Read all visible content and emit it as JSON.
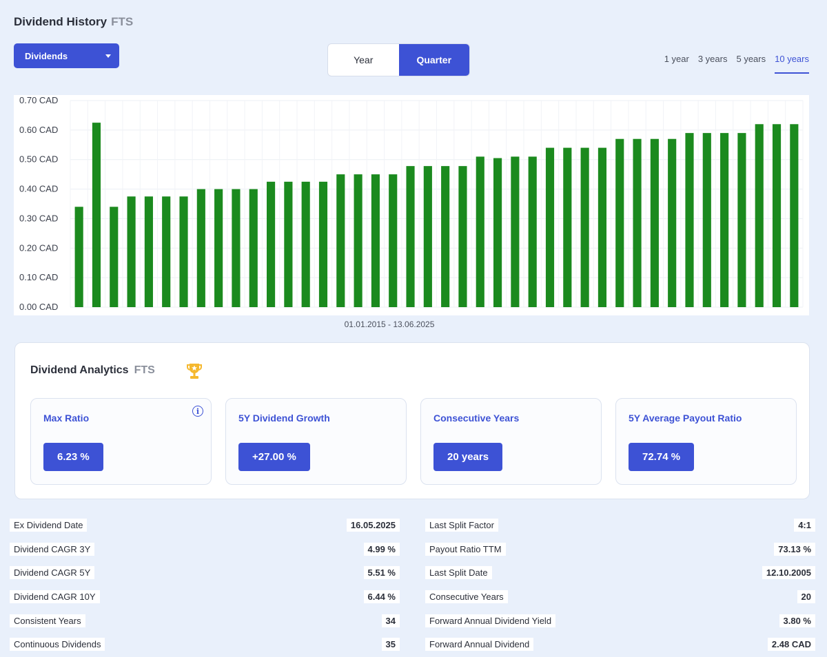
{
  "header": {
    "title": "Dividend History",
    "ticker": "FTS"
  },
  "dropdown": {
    "selected": "Dividends"
  },
  "toggle": {
    "options": [
      "Year",
      "Quarter"
    ],
    "active": "Quarter"
  },
  "ranges": {
    "options": [
      "1 year",
      "3 years",
      "5 years",
      "10 years"
    ],
    "active": "10 years"
  },
  "chart_data": {
    "type": "bar",
    "ylim": [
      0,
      0.7
    ],
    "ytick_labels": [
      "0.00 CAD",
      "0.10 CAD",
      "0.20 CAD",
      "0.30 CAD",
      "0.40 CAD",
      "0.50 CAD",
      "0.60 CAD",
      "0.70 CAD"
    ],
    "yticks": [
      0,
      0.1,
      0.2,
      0.3,
      0.4,
      0.5,
      0.6,
      0.7
    ],
    "values": [
      0.34,
      0.625,
      0.34,
      0.375,
      0.375,
      0.375,
      0.375,
      0.4,
      0.4,
      0.4,
      0.4,
      0.425,
      0.425,
      0.425,
      0.425,
      0.45,
      0.45,
      0.45,
      0.45,
      0.478,
      0.478,
      0.478,
      0.478,
      0.51,
      0.505,
      0.51,
      0.51,
      0.54,
      0.54,
      0.54,
      0.54,
      0.57,
      0.57,
      0.57,
      0.57,
      0.59,
      0.59,
      0.59,
      0.59,
      0.62,
      0.62,
      0.62
    ],
    "color": "#1b8a1e",
    "grid": true,
    "xlabel": "01.01.2015 - 13.06.2025"
  },
  "analytics": {
    "title": "Dividend Analytics",
    "ticker": "FTS",
    "cards": [
      {
        "label": "Max Ratio",
        "value": "6.23 %",
        "info": "i"
      },
      {
        "label": "5Y Dividend Growth",
        "value": "+27.00 %"
      },
      {
        "label": "Consecutive Years",
        "value": "20 years"
      },
      {
        "label": "5Y Average Payout Ratio",
        "value": "72.74 %"
      }
    ]
  },
  "stats_left": [
    {
      "k": "Ex Dividend Date",
      "v": "16.05.2025"
    },
    {
      "k": "Dividend CAGR 3Y",
      "v": "4.99 %"
    },
    {
      "k": "Dividend CAGR 5Y",
      "v": "5.51 %"
    },
    {
      "k": "Dividend CAGR 10Y",
      "v": "6.44 %"
    },
    {
      "k": "Consistent Years",
      "v": "34"
    },
    {
      "k": "Continuous Dividends",
      "v": "35"
    }
  ],
  "stats_right": [
    {
      "k": "Last Split Factor",
      "v": "4:1"
    },
    {
      "k": "Payout Ratio TTM",
      "v": "73.13 %"
    },
    {
      "k": "Last Split Date",
      "v": "12.10.2005"
    },
    {
      "k": "Consecutive Years",
      "v": "20"
    },
    {
      "k": "Forward Annual Dividend Yield",
      "v": "3.80 %"
    },
    {
      "k": "Forward Annual Dividend",
      "v": "2.48 CAD"
    }
  ]
}
